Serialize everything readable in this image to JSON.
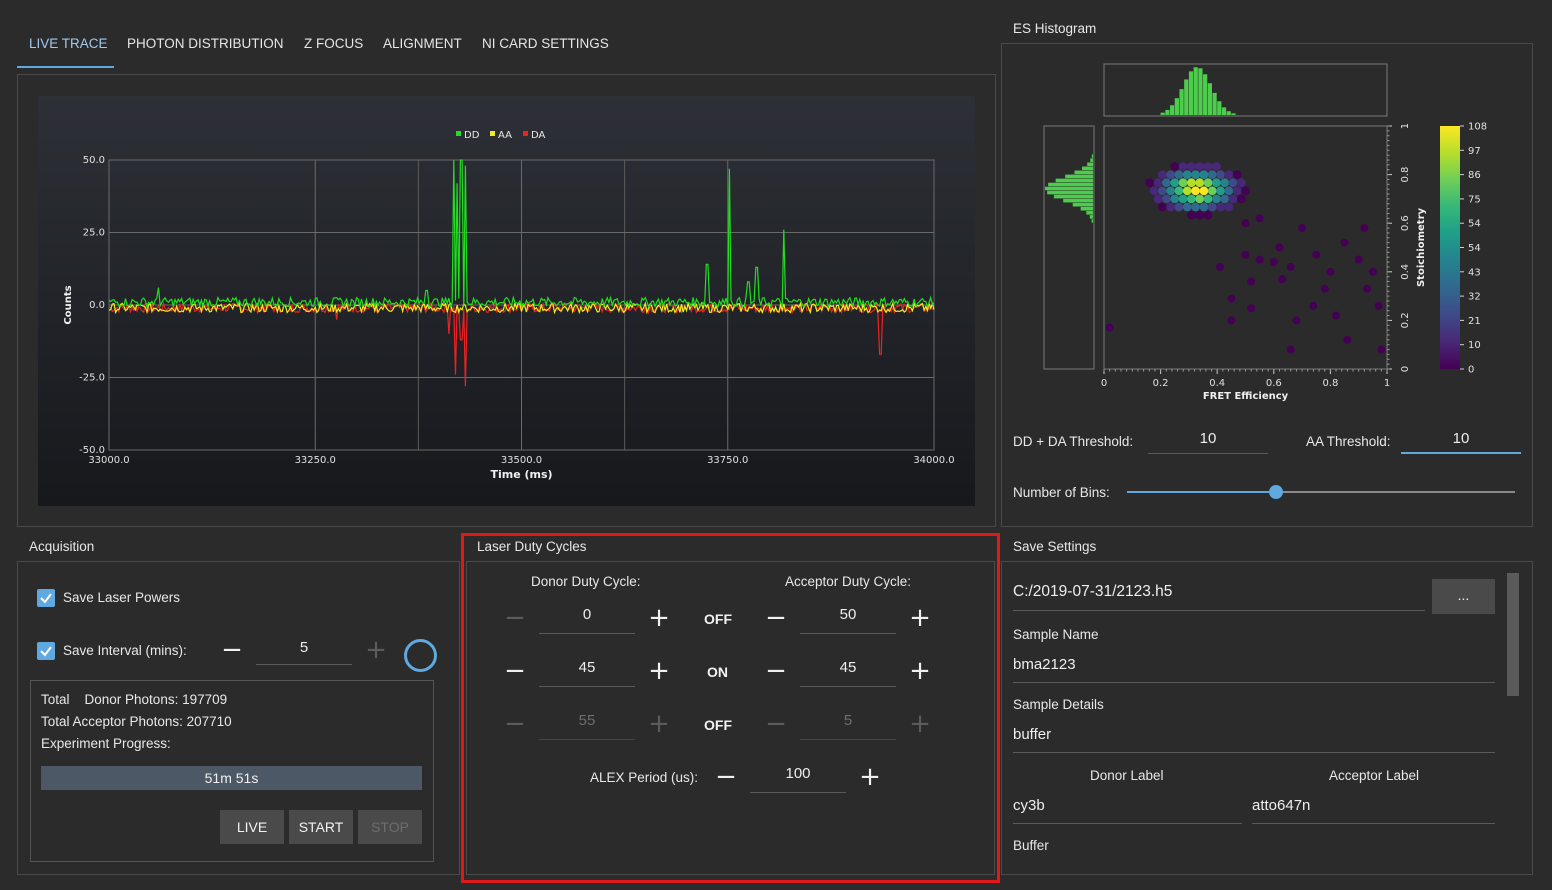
{
  "tabs": [
    "LIVE TRACE",
    "PHOTON DISTRIBUTION",
    "Z FOCUS",
    "ALIGNMENT",
    "NI CARD SETTINGS"
  ],
  "trace_chart": {
    "legend": [
      "DD",
      "AA",
      "DA"
    ],
    "xlabel": "Time (ms)",
    "ylabel": "Counts",
    "xticks": [
      "33000.0",
      "33250.0",
      "33500.0",
      "33750.0",
      "34000.0"
    ],
    "yticks": [
      "50.0",
      "25.0",
      "0.0",
      "-25.0",
      "-50.0"
    ]
  },
  "chart_data": [
    {
      "type": "line",
      "xlabel": "Time (ms)",
      "ylabel": "Counts",
      "xlim": [
        33000,
        34000
      ],
      "ylim": [
        -50,
        50
      ],
      "grid": true,
      "legend_position": "top-center",
      "series": [
        {
          "name": "DD",
          "color": "#22dd22",
          "baseline": 1,
          "spikes": [
            [
              33060,
              6
            ],
            [
              33385,
              5
            ],
            [
              33418,
              50
            ],
            [
              33422,
              42
            ],
            [
              33427,
              50
            ],
            [
              33432,
              48
            ],
            [
              33725,
              14
            ],
            [
              33752,
              47
            ],
            [
              33775,
              8
            ],
            [
              33785,
              13
            ],
            [
              33818,
              26
            ]
          ]
        },
        {
          "name": "AA",
          "color": "#eeee22",
          "baseline": -1,
          "spikes": []
        },
        {
          "name": "DA",
          "color": "#ee2222",
          "baseline": -1,
          "spikes": [
            [
              33412,
              -10
            ],
            [
              33420,
              -24
            ],
            [
              33427,
              -12
            ],
            [
              33432,
              -28
            ],
            [
              33935,
              -17
            ],
            [
              33276,
              -5
            ]
          ]
        }
      ]
    },
    {
      "type": "heatmap",
      "title": "ES Histogram",
      "xlabel": "FRET Efficiency",
      "ylabel": "Stoichiometry",
      "xlim": [
        0,
        1
      ],
      "ylim": [
        0,
        1
      ],
      "xticks": [
        "0",
        "0.2",
        "0.4",
        "0.6",
        "0.8",
        "1"
      ],
      "yticks": [
        "0",
        "0.2",
        "0.4",
        "0.6",
        "0.8",
        "1"
      ],
      "colorbar_ticks": [
        "108",
        "97",
        "86",
        "75",
        "54",
        "54",
        "43",
        "32",
        "21",
        "10",
        "0"
      ],
      "peak": {
        "x": 0.33,
        "y": 0.74,
        "count": 108
      }
    }
  ],
  "es_histogram": {
    "title": "ES Histogram",
    "xlabel": "FRET Efficiency",
    "ylabel": "Stoichiometry",
    "dd_da_threshold_label": "DD + DA Threshold:",
    "dd_da_threshold": "10",
    "aa_threshold_label": "AA Threshold:",
    "aa_threshold": "10",
    "bins_label": "Number of Bins:",
    "bins_fraction": 0.4
  },
  "acquisition": {
    "title": "Acquisition",
    "save_laser_powers": "Save Laser Powers",
    "save_interval_label": "Save Interval (mins):",
    "save_interval": "5",
    "total_donor": "Total    Donor Photons: 197709",
    "total_acceptor": "Total Acceptor Photons: 207710",
    "experiment_progress": "Experiment Progress:",
    "progress_text": "51m 51s",
    "progress_fraction": 1.0,
    "live": "LIVE",
    "start": "START",
    "stop": "STOP"
  },
  "laser": {
    "title": "Laser Duty Cycles",
    "donor_label": "Donor Duty Cycle:",
    "acceptor_label": "Acceptor Duty Cycle:",
    "rows": [
      {
        "donor": "0",
        "state": "OFF",
        "acceptor": "50"
      },
      {
        "donor": "45",
        "state": "ON",
        "acceptor": "45"
      },
      {
        "donor": "55",
        "state": "OFF",
        "acceptor": "5"
      }
    ],
    "alex_label": "ALEX Period (us):",
    "alex_value": "100",
    "highlight_color": "#e01818"
  },
  "save_settings": {
    "title": "Save Settings",
    "file_path": "C:/2019-07-31/2123.h5",
    "browse": "...",
    "sample_name_label": "Sample Name",
    "sample_name": "bma2123",
    "sample_details_label": "Sample Details",
    "sample_details": "buffer",
    "donor_label_label": "Donor Label",
    "donor_label": "cy3b",
    "acceptor_label_label": "Acceptor Label",
    "acceptor_label": "atto647n",
    "buffer_label": "Buffer"
  },
  "colors": {
    "accent": "#5fa8e0",
    "background": "#2b2b2b"
  }
}
